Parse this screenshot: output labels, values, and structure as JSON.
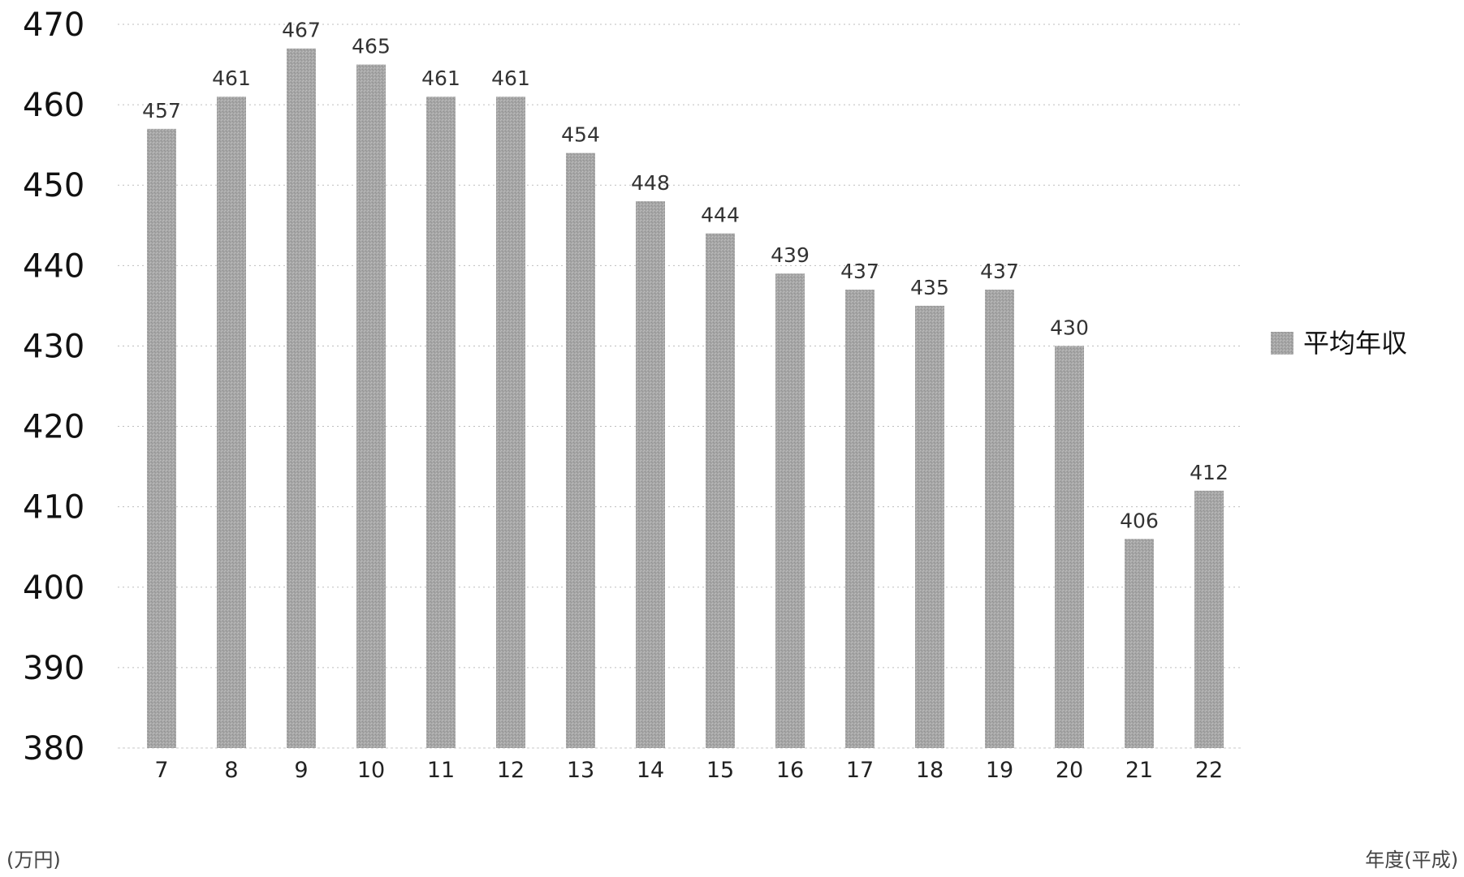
{
  "chart_data": {
    "type": "bar",
    "categories": [
      "7",
      "8",
      "9",
      "10",
      "11",
      "12",
      "13",
      "14",
      "15",
      "16",
      "17",
      "18",
      "19",
      "20",
      "21",
      "22"
    ],
    "series": [
      {
        "name": "平均年収",
        "values": [
          457,
          461,
          467,
          465,
          461,
          461,
          454,
          448,
          444,
          439,
          437,
          435,
          437,
          430,
          406,
          412
        ]
      }
    ],
    "ylim": [
      380,
      470
    ],
    "yticks": [
      470,
      460,
      450,
      440,
      430,
      420,
      410,
      400,
      390,
      380
    ],
    "ylabel": "(万円)",
    "xlabel": "年度(平成)",
    "legend_position": "right",
    "grid": true,
    "bar_color": "#a9a9a9"
  }
}
